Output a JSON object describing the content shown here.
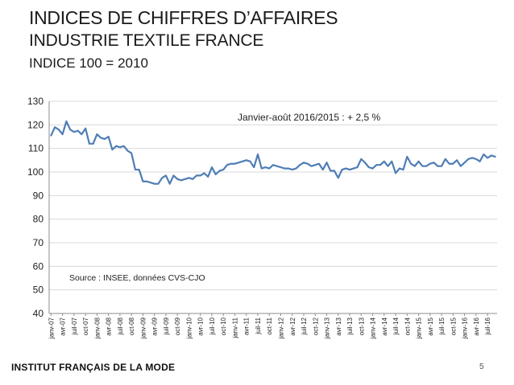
{
  "title": {
    "line1": "INDICES DE CHIFFRES D’AFFAIRES",
    "line2": "INDUSTRIE TEXTILE FRANCE",
    "line3": "INDICE 100 = 2010"
  },
  "footer": {
    "brand": "INSTITUT FRANÇAIS DE LA MODE",
    "page_number": "5"
  },
  "chart_data": {
    "type": "line",
    "title": "",
    "xlabel": "",
    "ylabel": "",
    "ylim": [
      40,
      130
    ],
    "yticks": [
      40,
      50,
      60,
      70,
      80,
      90,
      100,
      110,
      120,
      130
    ],
    "grid": true,
    "line_color": "#4f7db5",
    "xtick_labels": [
      "janv-07",
      "avr-07",
      "juil-07",
      "oct-07",
      "janv-08",
      "avr-08",
      "juil-08",
      "oct-08",
      "janv-09",
      "avr-09",
      "juil-09",
      "oct-09",
      "janv-10",
      "avr-10",
      "juil-10",
      "oct-10",
      "janv-11",
      "avr-11",
      "juil-11",
      "oct-11",
      "janv-12",
      "avr-12",
      "juil-12",
      "oct-12",
      "janv-13",
      "avr-13",
      "juil-13",
      "oct-13",
      "janv-14",
      "avr-14",
      "juil-14",
      "oct-14",
      "janv-15",
      "avr-15",
      "juil-15",
      "oct-15",
      "janv-16",
      "avr-16",
      "juil-16"
    ],
    "annotations": [
      "Janvier-août 2016/2015 : + 2,5 %",
      "Source : INSEE, données CVS-CJO"
    ],
    "series": [
      {
        "values": [
          115.5,
          119,
          118,
          116,
          121.5,
          118,
          117,
          117.5,
          116,
          118.5,
          112,
          112,
          116,
          114.5,
          114,
          115,
          109.5,
          111,
          110.5,
          111,
          109,
          108,
          101,
          101,
          96,
          96,
          95.5,
          95,
          95,
          97.5,
          98.5,
          95,
          98.5,
          97,
          96.5,
          97,
          97.5,
          97,
          98.5,
          98.5,
          99.5,
          98,
          102,
          99,
          100.5,
          101,
          103,
          103.5,
          103.5,
          104,
          104.5,
          105,
          104.5,
          102,
          107.5,
          101.5,
          102,
          101.5,
          103,
          102.5,
          102,
          101.5,
          101.5,
          101,
          101.5,
          103,
          104,
          103.5,
          102.5,
          103,
          103.5,
          101,
          104,
          100.5,
          100.5,
          97.5,
          101,
          101.5,
          101,
          101.5,
          102,
          105.5,
          104,
          102,
          101.5,
          103,
          103,
          104.5,
          102.5,
          104.5,
          99.5,
          101.5,
          101,
          106.5,
          103.5,
          102.5,
          104.5,
          102.5,
          102.5,
          103.5,
          104,
          102.5,
          102.5,
          105.5,
          103.5,
          103.5,
          105,
          102.5,
          104,
          105.5,
          106,
          105.5,
          104.5,
          107.5,
          106,
          107,
          106.5
        ]
      }
    ]
  }
}
